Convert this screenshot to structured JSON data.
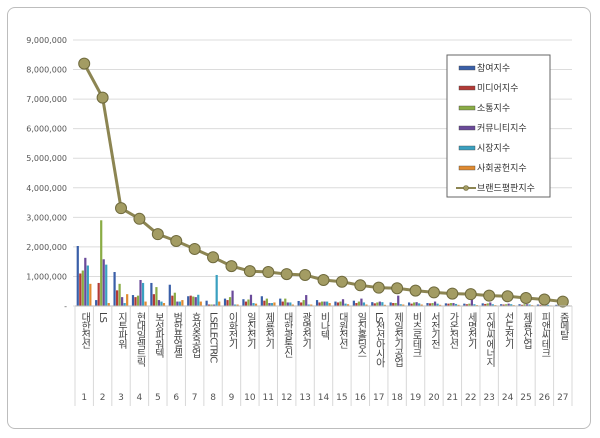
{
  "chart_data": {
    "type": "bar",
    "title": "",
    "xlabel": "",
    "ylabel": "",
    "ylim": [
      0,
      9000000
    ],
    "yticks": [
      "-",
      "1,000,000",
      "2,000,000",
      "3,000,000",
      "4,000,000",
      "5,000,000",
      "6,000,000",
      "7,000,000",
      "8,000,000",
      "9,000,000"
    ],
    "grid": true,
    "legend_position": "top-right",
    "categories": [
      "대한전선",
      "LS",
      "지투파워",
      "현대일렉트릭",
      "보성파워텍",
      "범한퓨얼셀",
      "효성중공업",
      "LSELECTRIC",
      "이화전기",
      "일진전기",
      "제룡전기",
      "대한광통신",
      "광명전기",
      "비나텍",
      "대원전선",
      "일진홀딩스",
      "LS전선아시아",
      "제일전기공업",
      "비츠로테크",
      "서전기전",
      "가온전선",
      "세명전기",
      "지엔씨에너지",
      "선도전기",
      "제룡산업",
      "피앤씨테크",
      "줌메탈"
    ],
    "ranks": [
      "1",
      "2",
      "3",
      "4",
      "5",
      "6",
      "7",
      "8",
      "9",
      "10",
      "11",
      "12",
      "13",
      "14",
      "15",
      "16",
      "17",
      "18",
      "19",
      "20",
      "21",
      "22",
      "23",
      "24",
      "25",
      "26",
      "27"
    ],
    "series": [
      {
        "name": "참여지수",
        "type": "bar",
        "color": "#3a5fa8",
        "values": [
          2030000,
          200000,
          1150000,
          370000,
          780000,
          720000,
          330000,
          180000,
          250000,
          230000,
          330000,
          250000,
          170000,
          200000,
          150000,
          180000,
          130000,
          120000,
          120000,
          100000,
          90000,
          80000,
          90000,
          60000,
          60000,
          50000,
          40000
        ]
      },
      {
        "name": "미디어지수",
        "type": "bar",
        "color": "#b23a36",
        "values": [
          1100000,
          780000,
          530000,
          300000,
          400000,
          350000,
          350000,
          50000,
          200000,
          150000,
          180000,
          150000,
          120000,
          120000,
          120000,
          100000,
          90000,
          100000,
          80000,
          90000,
          80000,
          60000,
          70000,
          50000,
          40000,
          40000,
          30000
        ]
      },
      {
        "name": "소통지수",
        "type": "bar",
        "color": "#8aac45",
        "values": [
          1200000,
          2900000,
          750000,
          350000,
          640000,
          450000,
          320000,
          50000,
          300000,
          220000,
          250000,
          250000,
          200000,
          150000,
          150000,
          150000,
          120000,
          100000,
          120000,
          100000,
          100000,
          80000,
          90000,
          60000,
          60000,
          50000,
          40000
        ]
      },
      {
        "name": "커뮤니티지수",
        "type": "bar",
        "color": "#6a4a9a",
        "values": [
          1630000,
          1580000,
          300000,
          880000,
          200000,
          150000,
          300000,
          50000,
          520000,
          380000,
          100000,
          120000,
          370000,
          150000,
          230000,
          250000,
          150000,
          350000,
          130000,
          150000,
          100000,
          350000,
          120000,
          80000,
          60000,
          50000,
          40000
        ]
      },
      {
        "name": "시장지수",
        "type": "bar",
        "color": "#3aa0c0",
        "values": [
          1370000,
          1400000,
          100000,
          780000,
          150000,
          150000,
          380000,
          1050000,
          50000,
          100000,
          100000,
          120000,
          50000,
          150000,
          80000,
          120000,
          130000,
          60000,
          90000,
          80000,
          70000,
          60000,
          60000,
          60000,
          50000,
          40000,
          30000
        ]
      },
      {
        "name": "사회공헌지수",
        "type": "bar",
        "color": "#e08a30",
        "values": [
          750000,
          100000,
          400000,
          150000,
          100000,
          200000,
          150000,
          150000,
          50000,
          80000,
          120000,
          50000,
          50000,
          100000,
          60000,
          50000,
          40000,
          50000,
          50000,
          40000,
          40000,
          30000,
          30000,
          30000,
          30000,
          20000,
          20000
        ]
      },
      {
        "name": "브랜드평판지수",
        "type": "line",
        "color": "#8c8552",
        "values": [
          8200000,
          7050000,
          3310000,
          2950000,
          2430000,
          2200000,
          1930000,
          1650000,
          1350000,
          1180000,
          1150000,
          1080000,
          1050000,
          880000,
          820000,
          700000,
          620000,
          600000,
          520000,
          460000,
          420000,
          400000,
          350000,
          330000,
          270000,
          220000,
          150000
        ]
      }
    ]
  }
}
